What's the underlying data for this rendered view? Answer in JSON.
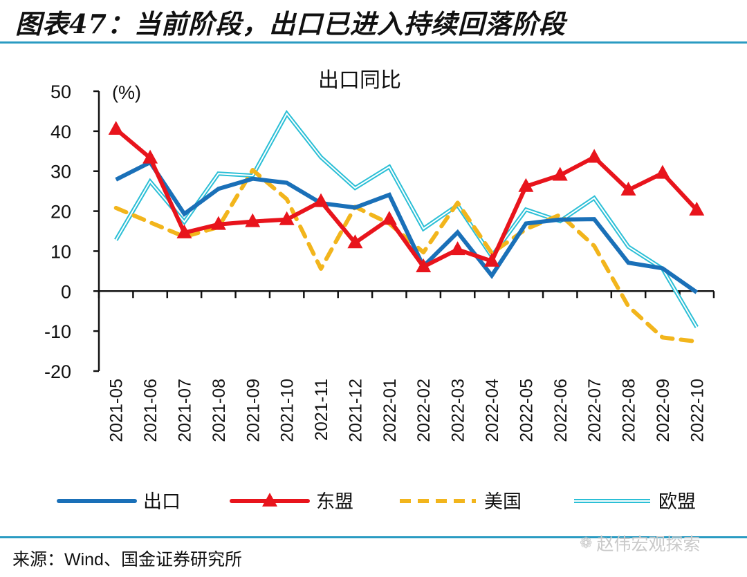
{
  "figure": {
    "title": "图表47：当前阶段，出口已进入持续回落阶段",
    "source": "来源：Wind、国金证券研究所",
    "watermark": "赵伟宏观探索",
    "watermark_icon": "wechat-icon"
  },
  "chart_data": {
    "type": "line",
    "title": "出口同比",
    "ylabel": "(%)",
    "xlabel": "",
    "ylim": [
      -20,
      50
    ],
    "yticks": [
      50,
      40,
      30,
      20,
      10,
      0,
      -10,
      -20
    ],
    "grid": false,
    "legend_position": "bottom",
    "categories": [
      "2021-05",
      "2021-06",
      "2021-07",
      "2021-08",
      "2021-09",
      "2021-10",
      "2021-11",
      "2021-12",
      "2022-01",
      "2022-02",
      "2022-03",
      "2022-04",
      "2022-05",
      "2022-06",
      "2022-07",
      "2022-08",
      "2022-09",
      "2022-10"
    ],
    "series": [
      {
        "name": "出口",
        "color": "#1a70b8",
        "style": "solid",
        "values": [
          27.9,
          32.2,
          19.3,
          25.6,
          28.1,
          27.1,
          22.0,
          20.9,
          24.1,
          6.2,
          14.7,
          3.9,
          16.9,
          17.9,
          18.0,
          7.1,
          5.7,
          -0.3
        ]
      },
      {
        "name": "东盟",
        "color": "#e8141c",
        "style": "solid-triangle",
        "values": [
          40.5,
          33.3,
          14.6,
          16.7,
          17.4,
          17.9,
          22.4,
          12.1,
          18.0,
          6.1,
          10.4,
          7.5,
          26.2,
          29.0,
          33.5,
          25.3,
          29.5,
          20.3
        ]
      },
      {
        "name": "美国",
        "color": "#f2b51c",
        "style": "dashed",
        "values": [
          20.8,
          17.2,
          13.6,
          16.0,
          30.3,
          23.0,
          5.6,
          21.1,
          16.9,
          9.7,
          22.1,
          9.5,
          15.5,
          19.1,
          11.3,
          -3.8,
          -11.6,
          -12.6
        ]
      },
      {
        "name": "欧盟",
        "color": "#2bbfd6",
        "style": "double",
        "values": [
          12.8,
          27.4,
          17.3,
          29.4,
          28.9,
          44.4,
          33.5,
          25.8,
          31.1,
          15.6,
          21.5,
          8.7,
          20.4,
          17.5,
          23.3,
          11.1,
          5.6,
          -9.0
        ]
      }
    ]
  }
}
